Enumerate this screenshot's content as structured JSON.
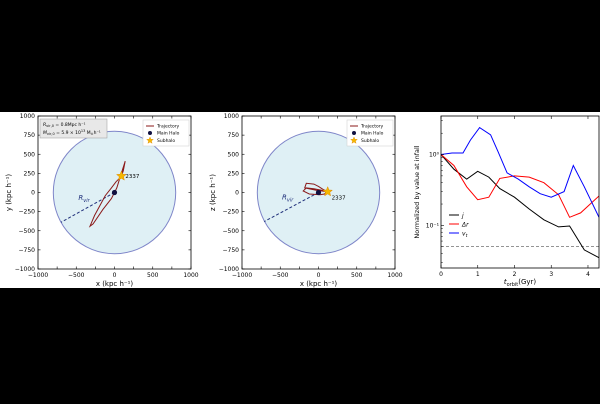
{
  "chart_data": [
    {
      "type": "scatter",
      "panel": "x-y projection",
      "xlabel": "x (kpc h⁻¹)",
      "ylabel": "y (kpc h⁻¹)",
      "xlim": [
        -1000,
        1000
      ],
      "ylim": [
        -1000,
        1000
      ],
      "ticks": [
        -1000,
        -750,
        -500,
        -250,
        0,
        250,
        500,
        750,
        1000
      ],
      "xtick_labels": [
        "−1000",
        "−500",
        "0",
        "500",
        "1000"
      ],
      "ytick_labels": [
        "−1000",
        "−750",
        "−500",
        "−250",
        "0",
        "250",
        "500",
        "750",
        "1000"
      ],
      "virial_radius": 800,
      "rvir_label": "R",
      "rvir_sub": "vir",
      "rvir_line_end": [
        -700,
        -390
      ],
      "info_box": [
        "R",
        "vir,0",
        " = 0.8Mpc h⁻¹",
        "M",
        "vir,0",
        " = 5.9 × 10",
        "13",
        " M",
        "⊙",
        "h⁻¹"
      ],
      "legend": {
        "position": "top-right",
        "entries": [
          "Trajectory",
          "Main Halo",
          "Subhalo"
        ]
      },
      "main_halo": [
        0,
        0
      ],
      "subhalo": {
        "id": "2337",
        "position": [
          90,
          215
        ]
      },
      "trajectory": [
        [
          90,
          215
        ],
        [
          115,
          285
        ],
        [
          140,
          410
        ],
        [
          80,
          220
        ],
        [
          30,
          60
        ],
        [
          0,
          0
        ],
        [
          -40,
          -80
        ],
        [
          -150,
          -220
        ],
        [
          -280,
          -410
        ],
        [
          -320,
          -440
        ],
        [
          -260,
          -300
        ],
        [
          -120,
          -40
        ],
        [
          -40,
          60
        ],
        [
          20,
          140
        ],
        [
          80,
          200
        ]
      ]
    },
    {
      "type": "scatter",
      "panel": "x-z projection",
      "xlabel": "x (kpc h⁻¹)",
      "ylabel": "z (kpc h⁻¹)",
      "xlim": [
        -1000,
        1000
      ],
      "ylim": [
        -1000,
        1000
      ],
      "ticks": [
        -1000,
        -750,
        -500,
        -250,
        0,
        250,
        500,
        750,
        1000
      ],
      "xtick_labels": [
        "−1000",
        "−500",
        "0",
        "500",
        "1000"
      ],
      "ytick_labels": [
        "−1000",
        "−750",
        "−500",
        "−250",
        "0",
        "250",
        "500",
        "750",
        "1000"
      ],
      "virial_radius": 800,
      "rvir_label": "R",
      "rvir_sub": "vir",
      "rvir_line_end": [
        -710,
        -380
      ],
      "legend": {
        "position": "top-right",
        "entries": [
          "Trajectory",
          "Main Halo",
          "Subhalo"
        ]
      },
      "main_halo": [
        0,
        0
      ],
      "subhalo": {
        "id": "2337",
        "position": [
          120,
          10
        ]
      },
      "trajectory": [
        [
          120,
          10
        ],
        [
          -30,
          30
        ],
        [
          -180,
          60
        ],
        [
          -160,
          120
        ],
        [
          -60,
          110
        ],
        [
          0,
          80
        ],
        [
          60,
          40
        ],
        [
          110,
          15
        ],
        [
          80,
          -20
        ],
        [
          20,
          -30
        ],
        [
          -120,
          -20
        ],
        [
          -200,
          20
        ],
        [
          -160,
          60
        ],
        [
          -60,
          50
        ],
        [
          40,
          30
        ],
        [
          120,
          10
        ]
      ]
    },
    {
      "type": "line",
      "panel": "normalized quantities",
      "xlabel_main": "t",
      "xlabel_sub": "orbit",
      "xlabel_unit": "(Gyr)",
      "ylabel": "Normalized by value at infall",
      "xlim": [
        0,
        4.3
      ],
      "ylim": [
        0.025,
        3.5
      ],
      "y_scale": "log",
      "x_ticks": [
        0,
        1,
        2,
        3,
        4
      ],
      "x_tick_labels": [
        "0",
        "1",
        "2",
        "3",
        "4"
      ],
      "y_ticks": [
        1,
        0.1
      ],
      "y_tick_labels": [
        "10⁰",
        "10⁻¹"
      ],
      "reference_line": 0.05,
      "legend": {
        "position": "bottom-left"
      },
      "series": [
        {
          "name": "j",
          "color": "#000000",
          "x": [
            0,
            0.35,
            0.7,
            1.0,
            1.3,
            1.6,
            2.0,
            2.4,
            2.8,
            3.2,
            3.5,
            3.9,
            4.3
          ],
          "y": [
            1.0,
            0.62,
            0.45,
            0.58,
            0.48,
            0.33,
            0.25,
            0.17,
            0.12,
            0.095,
            0.098,
            0.045,
            0.035
          ]
        },
        {
          "name": "Δr",
          "color": "#ff0000",
          "x": [
            0,
            0.35,
            0.7,
            1.0,
            1.3,
            1.6,
            2.0,
            2.4,
            2.8,
            3.2,
            3.5,
            3.8,
            4.3
          ],
          "y": [
            1.0,
            0.7,
            0.35,
            0.23,
            0.25,
            0.46,
            0.5,
            0.48,
            0.4,
            0.27,
            0.13,
            0.15,
            0.26
          ]
        },
        {
          "name": "v",
          "name_sub": "t",
          "color": "#0000ff",
          "x": [
            0,
            0.3,
            0.6,
            0.8,
            1.05,
            1.35,
            1.55,
            1.8,
            2.1,
            2.4,
            2.7,
            3.0,
            3.35,
            3.6,
            3.9,
            4.3
          ],
          "y": [
            1.0,
            1.05,
            1.05,
            1.6,
            2.4,
            1.9,
            1.1,
            0.55,
            0.45,
            0.35,
            0.28,
            0.25,
            0.3,
            0.7,
            0.35,
            0.13
          ]
        }
      ]
    }
  ]
}
